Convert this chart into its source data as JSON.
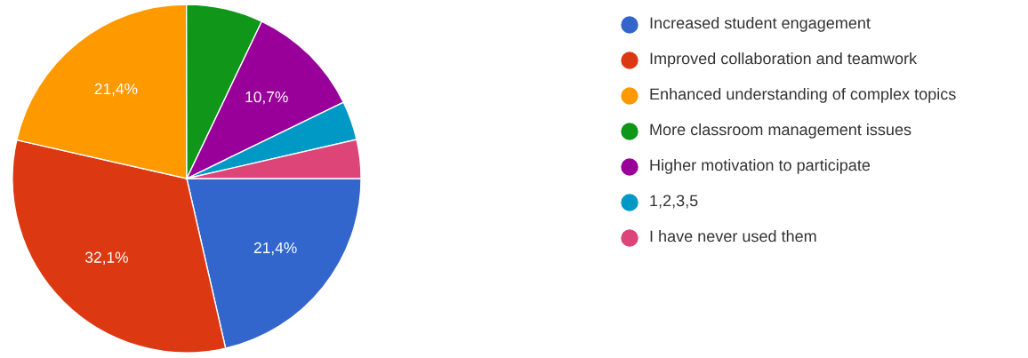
{
  "chart_data": {
    "type": "pie",
    "categories": [
      "Increased student engagement",
      "Improved collaboration and teamwork",
      "Enhanced understanding of complex topics",
      "More classroom management issues",
      "Higher motivation to participate",
      "1,2,3,5",
      "I have never used them"
    ],
    "values": [
      21.4,
      32.1,
      21.4,
      7.1,
      10.7,
      3.6,
      3.6
    ],
    "value_labels": [
      "21,4%",
      "32,1%",
      "21,4%",
      null,
      "10,7%",
      null,
      null
    ],
    "colors": [
      "#3366cc",
      "#dc3912",
      "#ff9900",
      "#109618",
      "#990099",
      "#0099c6",
      "#dd4477"
    ],
    "legend": "right"
  }
}
